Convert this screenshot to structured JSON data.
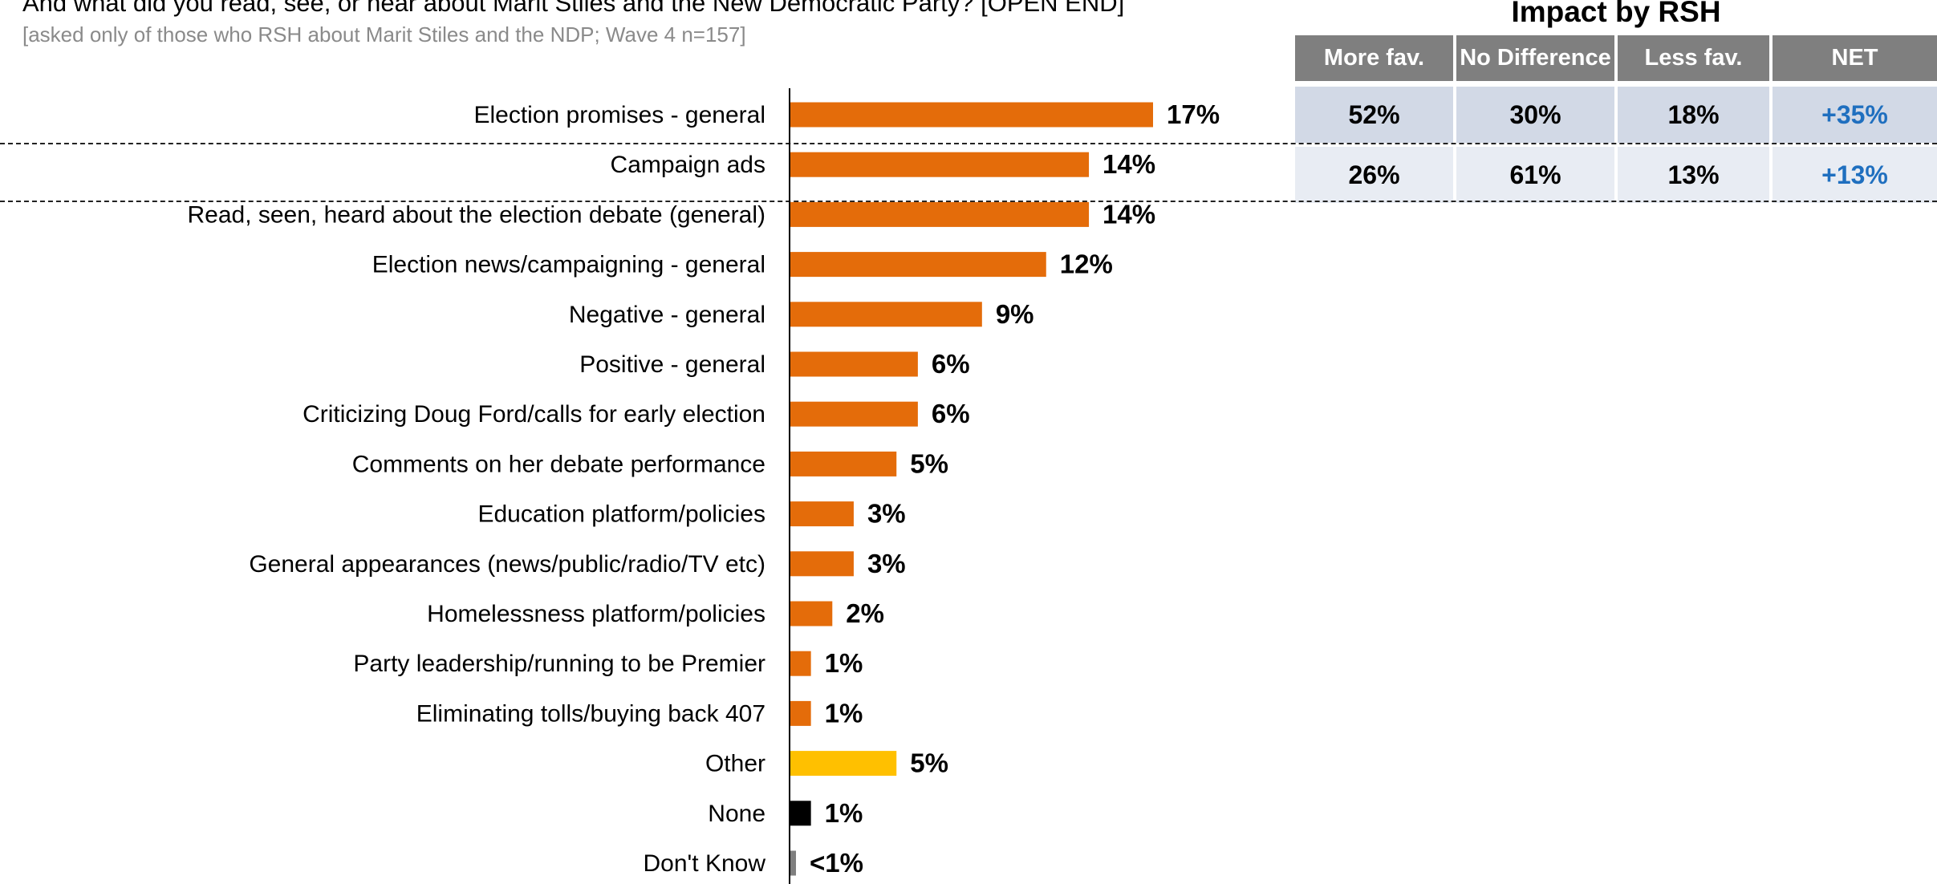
{
  "question": "And what did you read, see, or hear about Marit Stiles and the New Democratic Party? [OPEN END]",
  "subnote": "[asked only of those who RSH about Marit Stiles and the NDP; Wave 4 n=157]",
  "impact": {
    "title": "Impact by RSH",
    "headers": [
      "More fav.",
      "No Difference",
      "Less fav.",
      "NET"
    ],
    "rows": [
      {
        "category": "Election promises - general",
        "values": [
          "52%",
          "30%",
          "18%",
          "+35%"
        ]
      },
      {
        "category": "Campaign ads",
        "values": [
          "26%",
          "61%",
          "13%",
          "+13%"
        ]
      }
    ]
  },
  "colors": {
    "main": "#e46c0a",
    "other": "#ffc000",
    "none": "#000000",
    "dont_know": "#7f7f7f",
    "net_text": "#1f6fbf",
    "header_bg": "#7f7f7f"
  },
  "chart_data": {
    "type": "bar",
    "orientation": "horizontal",
    "categories": [
      "Election promises - general",
      "Campaign ads",
      "Read, seen, heard about the election debate (general)",
      "Election news/campaigning - general",
      "Negative - general",
      "Positive - general",
      "Criticizing Doug Ford/calls for early election",
      "Comments on her debate performance",
      "Education platform/policies",
      "General appearances (news/public/radio/TV etc)",
      "Homelessness platform/policies",
      "Party leadership/running to be Premier",
      "Eliminating tolls/buying back 407",
      "Other",
      "None",
      "Don't Know"
    ],
    "values": [
      17,
      14,
      14,
      12,
      9,
      6,
      6,
      5,
      3,
      3,
      2,
      1,
      1,
      5,
      1,
      0.3
    ],
    "labels": [
      "17%",
      "14%",
      "14%",
      "12%",
      "9%",
      "6%",
      "6%",
      "5%",
      "3%",
      "3%",
      "2%",
      "1%",
      "1%",
      "5%",
      "1%",
      "<1%"
    ],
    "bar_colors": [
      "#e46c0a",
      "#e46c0a",
      "#e46c0a",
      "#e46c0a",
      "#e46c0a",
      "#e46c0a",
      "#e46c0a",
      "#e46c0a",
      "#e46c0a",
      "#e46c0a",
      "#e46c0a",
      "#e46c0a",
      "#e46c0a",
      "#ffc000",
      "#000000",
      "#7f7f7f"
    ],
    "xlim": [
      0,
      17
    ],
    "grid": false
  }
}
